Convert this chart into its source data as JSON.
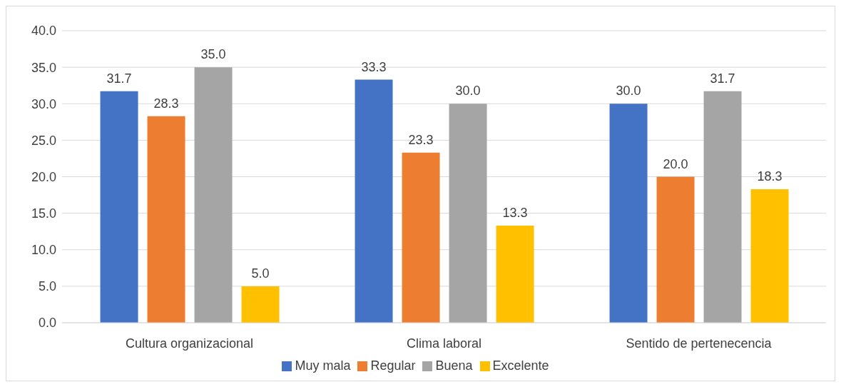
{
  "chart_data": {
    "type": "bar",
    "categories": [
      "Cultura organizacional",
      "Clima laboral",
      "Sentido de pertenecencia"
    ],
    "series": [
      {
        "name": "Muy mala",
        "color": "#4472c4",
        "values": [
          31.7,
          33.3,
          30.0
        ],
        "value_labels": [
          "31.7",
          "33.3",
          "30.0"
        ]
      },
      {
        "name": "Regular",
        "color": "#ed7d31",
        "values": [
          28.3,
          23.3,
          20.0
        ],
        "value_labels": [
          "28.3",
          "23.3",
          "20.0"
        ]
      },
      {
        "name": "Buena",
        "color": "#a5a5a5",
        "values": [
          35.0,
          30.0,
          31.7
        ],
        "value_labels": [
          "35.0",
          "30.0",
          "31.7"
        ]
      },
      {
        "name": "Excelente",
        "color": "#ffc000",
        "values": [
          5.0,
          13.3,
          18.3
        ],
        "value_labels": [
          "5.0",
          "13.3",
          "18.3"
        ]
      }
    ],
    "ylim": [
      0,
      40
    ],
    "yticks": [
      {
        "value": 0,
        "label": "0.0"
      },
      {
        "value": 5,
        "label": "5.0"
      },
      {
        "value": 10,
        "label": "10.0"
      },
      {
        "value": 15,
        "label": "15.0"
      },
      {
        "value": 20,
        "label": "20.0"
      },
      {
        "value": 25,
        "label": "25.0"
      },
      {
        "value": 30,
        "label": "30.0"
      },
      {
        "value": 35,
        "label": "35.0"
      },
      {
        "value": 40,
        "label": "40.0"
      }
    ],
    "grid": "y",
    "legend": "bottom"
  }
}
